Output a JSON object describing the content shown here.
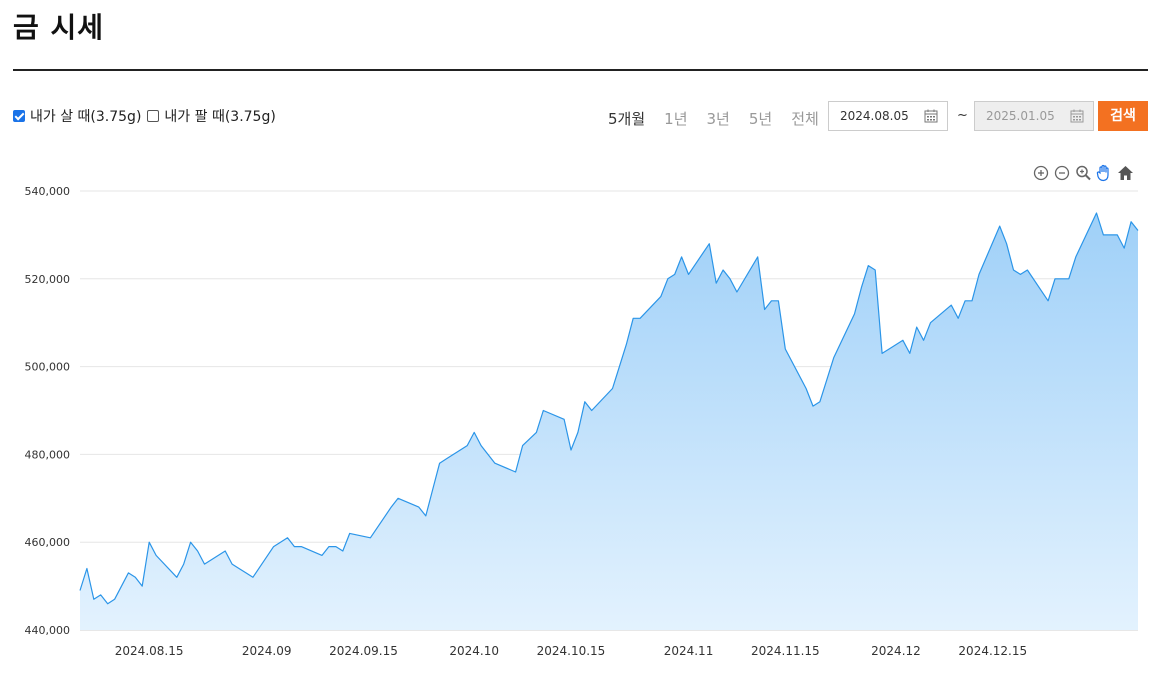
{
  "page": {
    "title": "금 시세"
  },
  "filters": {
    "buy_label": "내가 살 때(3.75g)",
    "buy_checked": true,
    "sell_label": "내가 팔 때(3.75g)",
    "sell_checked": false
  },
  "periods": {
    "items": [
      "5개월",
      "1년",
      "3년",
      "5년",
      "전체"
    ],
    "active": "5개월"
  },
  "date_range": {
    "start": "2024.08.05",
    "separator": "~",
    "end": "2025.01.05"
  },
  "search_label": "검색",
  "toolbar_icons": [
    "zoom-in-icon",
    "zoom-out-icon",
    "magnifier-icon",
    "pan-hand-icon",
    "home-icon"
  ],
  "colors": {
    "accent": "#f37121",
    "line": "#2b95e8",
    "area_top": "#9fd0f8",
    "area_bottom": "#e3f2fe"
  },
  "chart_data": {
    "type": "area",
    "title": "",
    "xlabel": "",
    "ylabel": "",
    "ylim": [
      440000,
      540000
    ],
    "yticks": [
      440000,
      460000,
      480000,
      500000,
      520000,
      540000
    ],
    "ytick_labels": [
      "440,000",
      "460,000",
      "480,000",
      "500,000",
      "520,000",
      "540,000"
    ],
    "xticks": [
      "2024-08-15",
      "2024-09-01",
      "2024-09-15",
      "2024-10-01",
      "2024-10-15",
      "2024-11-01",
      "2024-11-15",
      "2024-12-01",
      "2024-12-15"
    ],
    "xtick_labels": [
      "2024.08.15",
      "2024.09",
      "2024.09.15",
      "2024.10",
      "2024.10.15",
      "2024.11",
      "2024.11.15",
      "2024.12",
      "2024.12.15"
    ],
    "grid": true,
    "series": [
      {
        "x": [
          "2024-08-05",
          "2024-08-06",
          "2024-08-07",
          "2024-08-08",
          "2024-08-09",
          "2024-08-10",
          "2024-08-12",
          "2024-08-13",
          "2024-08-14",
          "2024-08-15",
          "2024-08-16",
          "2024-08-19",
          "2024-08-20",
          "2024-08-21",
          "2024-08-22",
          "2024-08-23",
          "2024-08-26",
          "2024-08-27",
          "2024-08-28",
          "2024-08-29",
          "2024-08-30",
          "2024-09-02",
          "2024-09-03",
          "2024-09-04",
          "2024-09-05",
          "2024-09-06",
          "2024-09-09",
          "2024-09-10",
          "2024-09-11",
          "2024-09-12",
          "2024-09-13",
          "2024-09-16",
          "2024-09-19",
          "2024-09-20",
          "2024-09-23",
          "2024-09-24",
          "2024-09-25",
          "2024-09-26",
          "2024-09-27",
          "2024-09-30",
          "2024-10-01",
          "2024-10-02",
          "2024-10-04",
          "2024-10-07",
          "2024-10-08",
          "2024-10-10",
          "2024-10-11",
          "2024-10-14",
          "2024-10-15",
          "2024-10-16",
          "2024-10-17",
          "2024-10-18",
          "2024-10-21",
          "2024-10-22",
          "2024-10-23",
          "2024-10-24",
          "2024-10-25",
          "2024-10-28",
          "2024-10-29",
          "2024-10-30",
          "2024-10-31",
          "2024-11-01",
          "2024-11-04",
          "2024-11-05",
          "2024-11-06",
          "2024-11-07",
          "2024-11-08",
          "2024-11-11",
          "2024-11-12",
          "2024-11-13",
          "2024-11-14",
          "2024-11-15",
          "2024-11-18",
          "2024-11-19",
          "2024-11-20",
          "2024-11-21",
          "2024-11-22",
          "2024-11-25",
          "2024-11-26",
          "2024-11-27",
          "2024-11-28",
          "2024-11-29",
          "2024-12-02",
          "2024-12-03",
          "2024-12-04",
          "2024-12-05",
          "2024-12-06",
          "2024-12-09",
          "2024-12-10",
          "2024-12-11",
          "2024-12-12",
          "2024-12-13",
          "2024-12-16",
          "2024-12-17",
          "2024-12-18",
          "2024-12-19",
          "2024-12-20",
          "2024-12-23",
          "2024-12-24",
          "2024-12-26",
          "2024-12-27",
          "2024-12-30",
          "2024-12-31",
          "2025-01-02",
          "2025-01-03",
          "2025-01-04",
          "2025-01-05"
        ],
        "values": [
          449000,
          454000,
          447000,
          448000,
          446000,
          447000,
          453000,
          452000,
          450000,
          460000,
          457000,
          452000,
          455000,
          460000,
          458000,
          455000,
          458000,
          455000,
          454000,
          453000,
          452000,
          459000,
          460000,
          461000,
          459000,
          459000,
          457000,
          459000,
          459000,
          458000,
          462000,
          461000,
          468000,
          470000,
          468000,
          466000,
          472000,
          478000,
          479000,
          482000,
          485000,
          482000,
          478000,
          476000,
          482000,
          485000,
          490000,
          488000,
          481000,
          485000,
          492000,
          490000,
          495000,
          500000,
          505000,
          511000,
          511000,
          516000,
          520000,
          521000,
          525000,
          521000,
          528000,
          519000,
          522000,
          520000,
          517000,
          525000,
          513000,
          515000,
          515000,
          504000,
          495000,
          491000,
          492000,
          497000,
          502000,
          512000,
          518000,
          523000,
          522000,
          503000,
          506000,
          503000,
          509000,
          506000,
          510000,
          514000,
          511000,
          515000,
          515000,
          521000,
          532000,
          528000,
          522000,
          521000,
          522000,
          515000,
          520000,
          520000,
          525000,
          535000,
          530000,
          530000,
          527000,
          533000,
          531000
        ]
      }
    ]
  }
}
